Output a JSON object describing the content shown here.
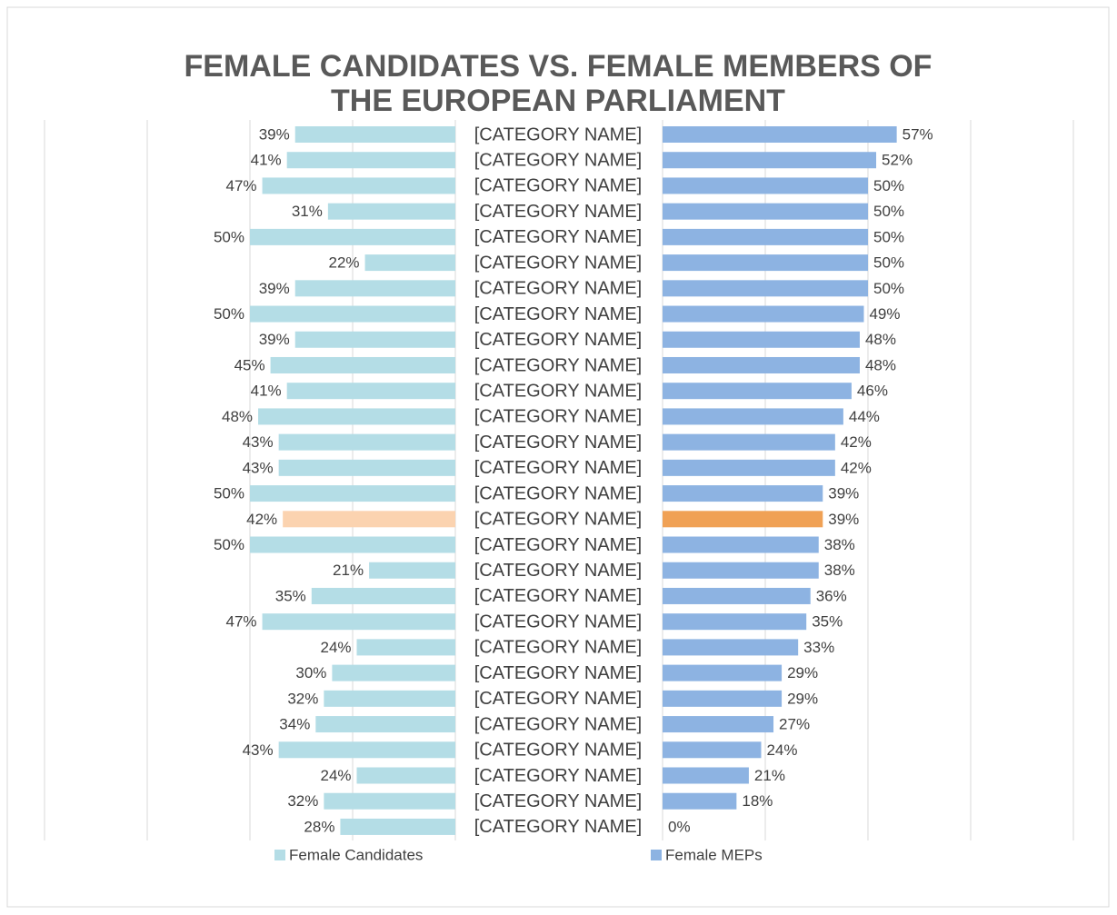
{
  "chart_data": {
    "type": "butterfly_bar",
    "title": "FEMALE CANDIDATES VS. FEMALE MEMBERS OF THE EUROPEAN PARLIAMENT",
    "categories": [
      "[CATEGORY NAME]",
      "[CATEGORY NAME]",
      "[CATEGORY NAME]",
      "[CATEGORY NAME]",
      "[CATEGORY NAME]",
      "[CATEGORY NAME]",
      "[CATEGORY NAME]",
      "[CATEGORY NAME]",
      "[CATEGORY NAME]",
      "[CATEGORY NAME]",
      "[CATEGORY NAME]",
      "[CATEGORY NAME]",
      "[CATEGORY NAME]",
      "[CATEGORY NAME]",
      "[CATEGORY NAME]",
      "[CATEGORY NAME]",
      "[CATEGORY NAME]",
      "[CATEGORY NAME]",
      "[CATEGORY NAME]",
      "[CATEGORY NAME]",
      "[CATEGORY NAME]",
      "[CATEGORY NAME]",
      "[CATEGORY NAME]",
      "[CATEGORY NAME]",
      "[CATEGORY NAME]",
      "[CATEGORY NAME]",
      "[CATEGORY NAME]",
      "[CATEGORY NAME]"
    ],
    "xlim": [
      0,
      100
    ],
    "xticks": [
      0,
      25,
      50,
      75,
      100
    ],
    "grid": true,
    "legend": "bottom",
    "series": [
      {
        "name": "Female Candidates",
        "side": "left",
        "color": "#b4dde6",
        "colors": [
          "#b4dde6",
          "#b4dde6",
          "#b4dde6",
          "#b4dde6",
          "#b4dde6",
          "#b4dde6",
          "#b4dde6",
          "#b4dde6",
          "#b4dde6",
          "#b4dde6",
          "#b4dde6",
          "#b4dde6",
          "#b4dde6",
          "#b4dde6",
          "#b4dde6",
          "#fbd3b0",
          "#b4dde6",
          "#b4dde6",
          "#b4dde6",
          "#b4dde6",
          "#b4dde6",
          "#b4dde6",
          "#b4dde6",
          "#b4dde6",
          "#b4dde6",
          "#b4dde6",
          "#b4dde6",
          "#b4dde6"
        ],
        "values": [
          39,
          41,
          47,
          31,
          50,
          22,
          39,
          50,
          39,
          45,
          41,
          48,
          43,
          43,
          50,
          42,
          50,
          21,
          35,
          47,
          24,
          30,
          32,
          34,
          43,
          24,
          32,
          28
        ],
        "value_labels": [
          "39%",
          "41%",
          "47%",
          "31%",
          "50%",
          "22%",
          "39%",
          "50%",
          "39%",
          "45%",
          "41%",
          "48%",
          "43%",
          "43%",
          "50%",
          "42%",
          "50%",
          "21%",
          "35%",
          "47%",
          "24%",
          "30%",
          "32%",
          "34%",
          "43%",
          "24%",
          "32%",
          "28%"
        ]
      },
      {
        "name": "Female MEPs",
        "side": "right",
        "color": "#8db3e2",
        "colors": [
          "#8db3e2",
          "#8db3e2",
          "#8db3e2",
          "#8db3e2",
          "#8db3e2",
          "#8db3e2",
          "#8db3e2",
          "#8db3e2",
          "#8db3e2",
          "#8db3e2",
          "#8db3e2",
          "#8db3e2",
          "#8db3e2",
          "#8db3e2",
          "#8db3e2",
          "#f0a155",
          "#8db3e2",
          "#8db3e2",
          "#8db3e2",
          "#8db3e2",
          "#8db3e2",
          "#8db3e2",
          "#8db3e2",
          "#8db3e2",
          "#8db3e2",
          "#8db3e2",
          "#8db3e2",
          "#8db3e2"
        ],
        "values": [
          57,
          52,
          50,
          50,
          50,
          50,
          50,
          49,
          48,
          48,
          46,
          44,
          42,
          42,
          39,
          39,
          38,
          38,
          36,
          35,
          33,
          29,
          29,
          27,
          24,
          21,
          18,
          0
        ],
        "value_labels": [
          "57%",
          "52%",
          "50%",
          "50%",
          "50%",
          "50%",
          "50%",
          "49%",
          "48%",
          "48%",
          "46%",
          "44%",
          "42%",
          "42%",
          "39%",
          "39%",
          "38%",
          "38%",
          "36%",
          "35%",
          "33%",
          "29%",
          "29%",
          "27%",
          "24%",
          "21%",
          "18%",
          "0%"
        ]
      }
    ]
  }
}
